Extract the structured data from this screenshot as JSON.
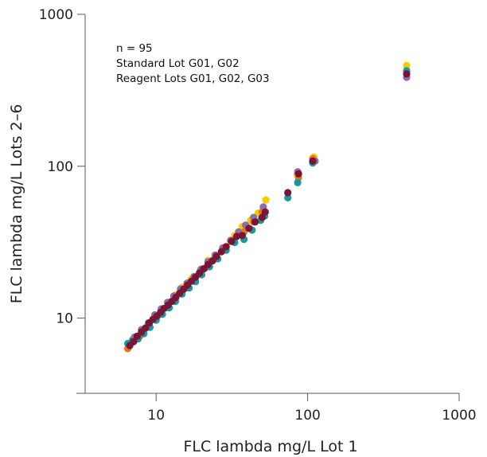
{
  "chart_data": {
    "type": "scatter",
    "title": "",
    "xlabel": "FLC lambda mg/L Lot 1",
    "ylabel": "FLC lambda mg/L Lots 2–6",
    "x_scale": "log",
    "y_scale": "log",
    "xlim": [
      3.4,
      1000
    ],
    "ylim": [
      3.2,
      1000
    ],
    "x_ticks": [
      10,
      100,
      1000
    ],
    "x_tick_labels": [
      "10",
      "100",
      "1000"
    ],
    "y_ticks": [
      10,
      100,
      1000
    ],
    "y_tick_labels": [
      "10",
      "100",
      "1000"
    ],
    "grid": false,
    "legend": "none",
    "annotations": [
      "n = 95",
      "Standard Lot G01, G02",
      "Reagent Lots G01, G02, G03"
    ],
    "colors": [
      "#f5cc00",
      "#e8731c",
      "#1a9a9a",
      "#8e6fa5",
      "#7a1436"
    ],
    "series": [
      {
        "color": "#f5cc00",
        "points": [
          [
            6.6,
            6.5
          ],
          [
            7.5,
            7.5
          ],
          [
            8.6,
            8.7
          ],
          [
            9.6,
            9.9
          ],
          [
            10.8,
            11.2
          ],
          [
            12.0,
            12.6
          ],
          [
            13.5,
            14.2
          ],
          [
            15.0,
            16.0
          ],
          [
            17.0,
            18.0
          ],
          [
            19.5,
            20.5
          ],
          [
            22.0,
            24.0
          ],
          [
            25.0,
            26.0
          ],
          [
            28.0,
            29.0
          ],
          [
            31.0,
            32.0
          ],
          [
            33.0,
            35.0
          ],
          [
            37.0,
            40.0
          ],
          [
            42.0,
            44.0
          ],
          [
            47.0,
            49.0
          ],
          [
            53.0,
            60.0
          ],
          [
            85.0,
            88.0
          ],
          [
            110.0,
            115.0
          ],
          [
            450.0,
            460.0
          ]
        ]
      },
      {
        "color": "#e8731c",
        "points": [
          [
            6.5,
            6.3
          ],
          [
            7.8,
            7.6
          ],
          [
            9.0,
            9.0
          ],
          [
            10.3,
            10.4
          ],
          [
            11.8,
            11.8
          ],
          [
            13.2,
            13.4
          ],
          [
            15.4,
            15.7
          ],
          [
            18.0,
            18.2
          ],
          [
            21.0,
            21.3
          ],
          [
            24.0,
            24.3
          ],
          [
            27.5,
            28.0
          ],
          [
            32.0,
            32.5
          ],
          [
            38.0,
            37.0
          ],
          [
            44.0,
            43.0
          ],
          [
            50.0,
            50.0
          ],
          [
            87.0,
            84.0
          ],
          [
            108.0,
            112.0
          ],
          [
            450.0,
            420.0
          ]
        ]
      },
      {
        "color": "#1a9a9a",
        "points": [
          [
            6.5,
            6.8
          ],
          [
            7.0,
            7.2
          ],
          [
            7.6,
            7.3
          ],
          [
            8.3,
            7.9
          ],
          [
            9.1,
            8.7
          ],
          [
            10.0,
            9.7
          ],
          [
            11.0,
            10.6
          ],
          [
            12.2,
            11.7
          ],
          [
            13.4,
            12.9
          ],
          [
            14.8,
            14.4
          ],
          [
            16.5,
            15.8
          ],
          [
            18.2,
            17.4
          ],
          [
            20.0,
            19.3
          ],
          [
            22.5,
            21.8
          ],
          [
            25.5,
            24.6
          ],
          [
            29.0,
            28.0
          ],
          [
            33.0,
            31.5
          ],
          [
            38.0,
            33.0
          ],
          [
            43.0,
            38.0
          ],
          [
            49.0,
            44.0
          ],
          [
            52.0,
            47.0
          ],
          [
            74.0,
            62.0
          ],
          [
            86.0,
            78.0
          ],
          [
            108.0,
            105.0
          ],
          [
            450.0,
            425.0
          ]
        ]
      },
      {
        "color": "#8e6fa5",
        "points": [
          [
            7.2,
            7.5
          ],
          [
            8.0,
            8.4
          ],
          [
            8.9,
            9.3
          ],
          [
            9.8,
            10.5
          ],
          [
            10.8,
            11.5
          ],
          [
            11.9,
            12.7
          ],
          [
            13.1,
            14.0
          ],
          [
            14.5,
            15.6
          ],
          [
            16.0,
            17.0
          ],
          [
            17.8,
            18.8
          ],
          [
            19.8,
            21.0
          ],
          [
            22.0,
            23.5
          ],
          [
            24.5,
            26.0
          ],
          [
            27.5,
            29.0
          ],
          [
            31.0,
            32.5
          ],
          [
            35.0,
            37.0
          ],
          [
            39.0,
            41.0
          ],
          [
            44.0,
            46.0
          ],
          [
            51.0,
            54.0
          ],
          [
            86.0,
            92.0
          ],
          [
            112.0,
            108.0
          ],
          [
            450.0,
            385.0
          ]
        ]
      },
      {
        "color": "#7a1436",
        "points": [
          [
            6.7,
            6.6
          ],
          [
            7.1,
            7.0
          ],
          [
            7.5,
            7.6
          ],
          [
            8.0,
            8.1
          ],
          [
            8.5,
            8.6
          ],
          [
            9.0,
            9.3
          ],
          [
            9.5,
            9.8
          ],
          [
            10.1,
            10.3
          ],
          [
            10.7,
            10.9
          ],
          [
            11.3,
            11.6
          ],
          [
            12.0,
            12.2
          ],
          [
            12.7,
            12.9
          ],
          [
            13.5,
            13.7
          ],
          [
            14.3,
            14.6
          ],
          [
            15.2,
            15.5
          ],
          [
            16.1,
            16.5
          ],
          [
            17.1,
            17.5
          ],
          [
            18.2,
            18.6
          ],
          [
            19.3,
            19.8
          ],
          [
            20.6,
            21.1
          ],
          [
            22.0,
            22.5
          ],
          [
            23.5,
            23.8
          ],
          [
            25.0,
            25.5
          ],
          [
            27.0,
            27.4
          ],
          [
            29.0,
            29.5
          ],
          [
            31.5,
            32.0
          ],
          [
            34.0,
            34.5
          ],
          [
            37.0,
            35.0
          ],
          [
            41.0,
            39.0
          ],
          [
            45.0,
            43.0
          ],
          [
            50.0,
            46.0
          ],
          [
            52.5,
            50.0
          ],
          [
            74.0,
            67.0
          ],
          [
            87.0,
            89.0
          ],
          [
            108.0,
            108.0
          ],
          [
            450.0,
            405.0
          ]
        ]
      }
    ]
  }
}
